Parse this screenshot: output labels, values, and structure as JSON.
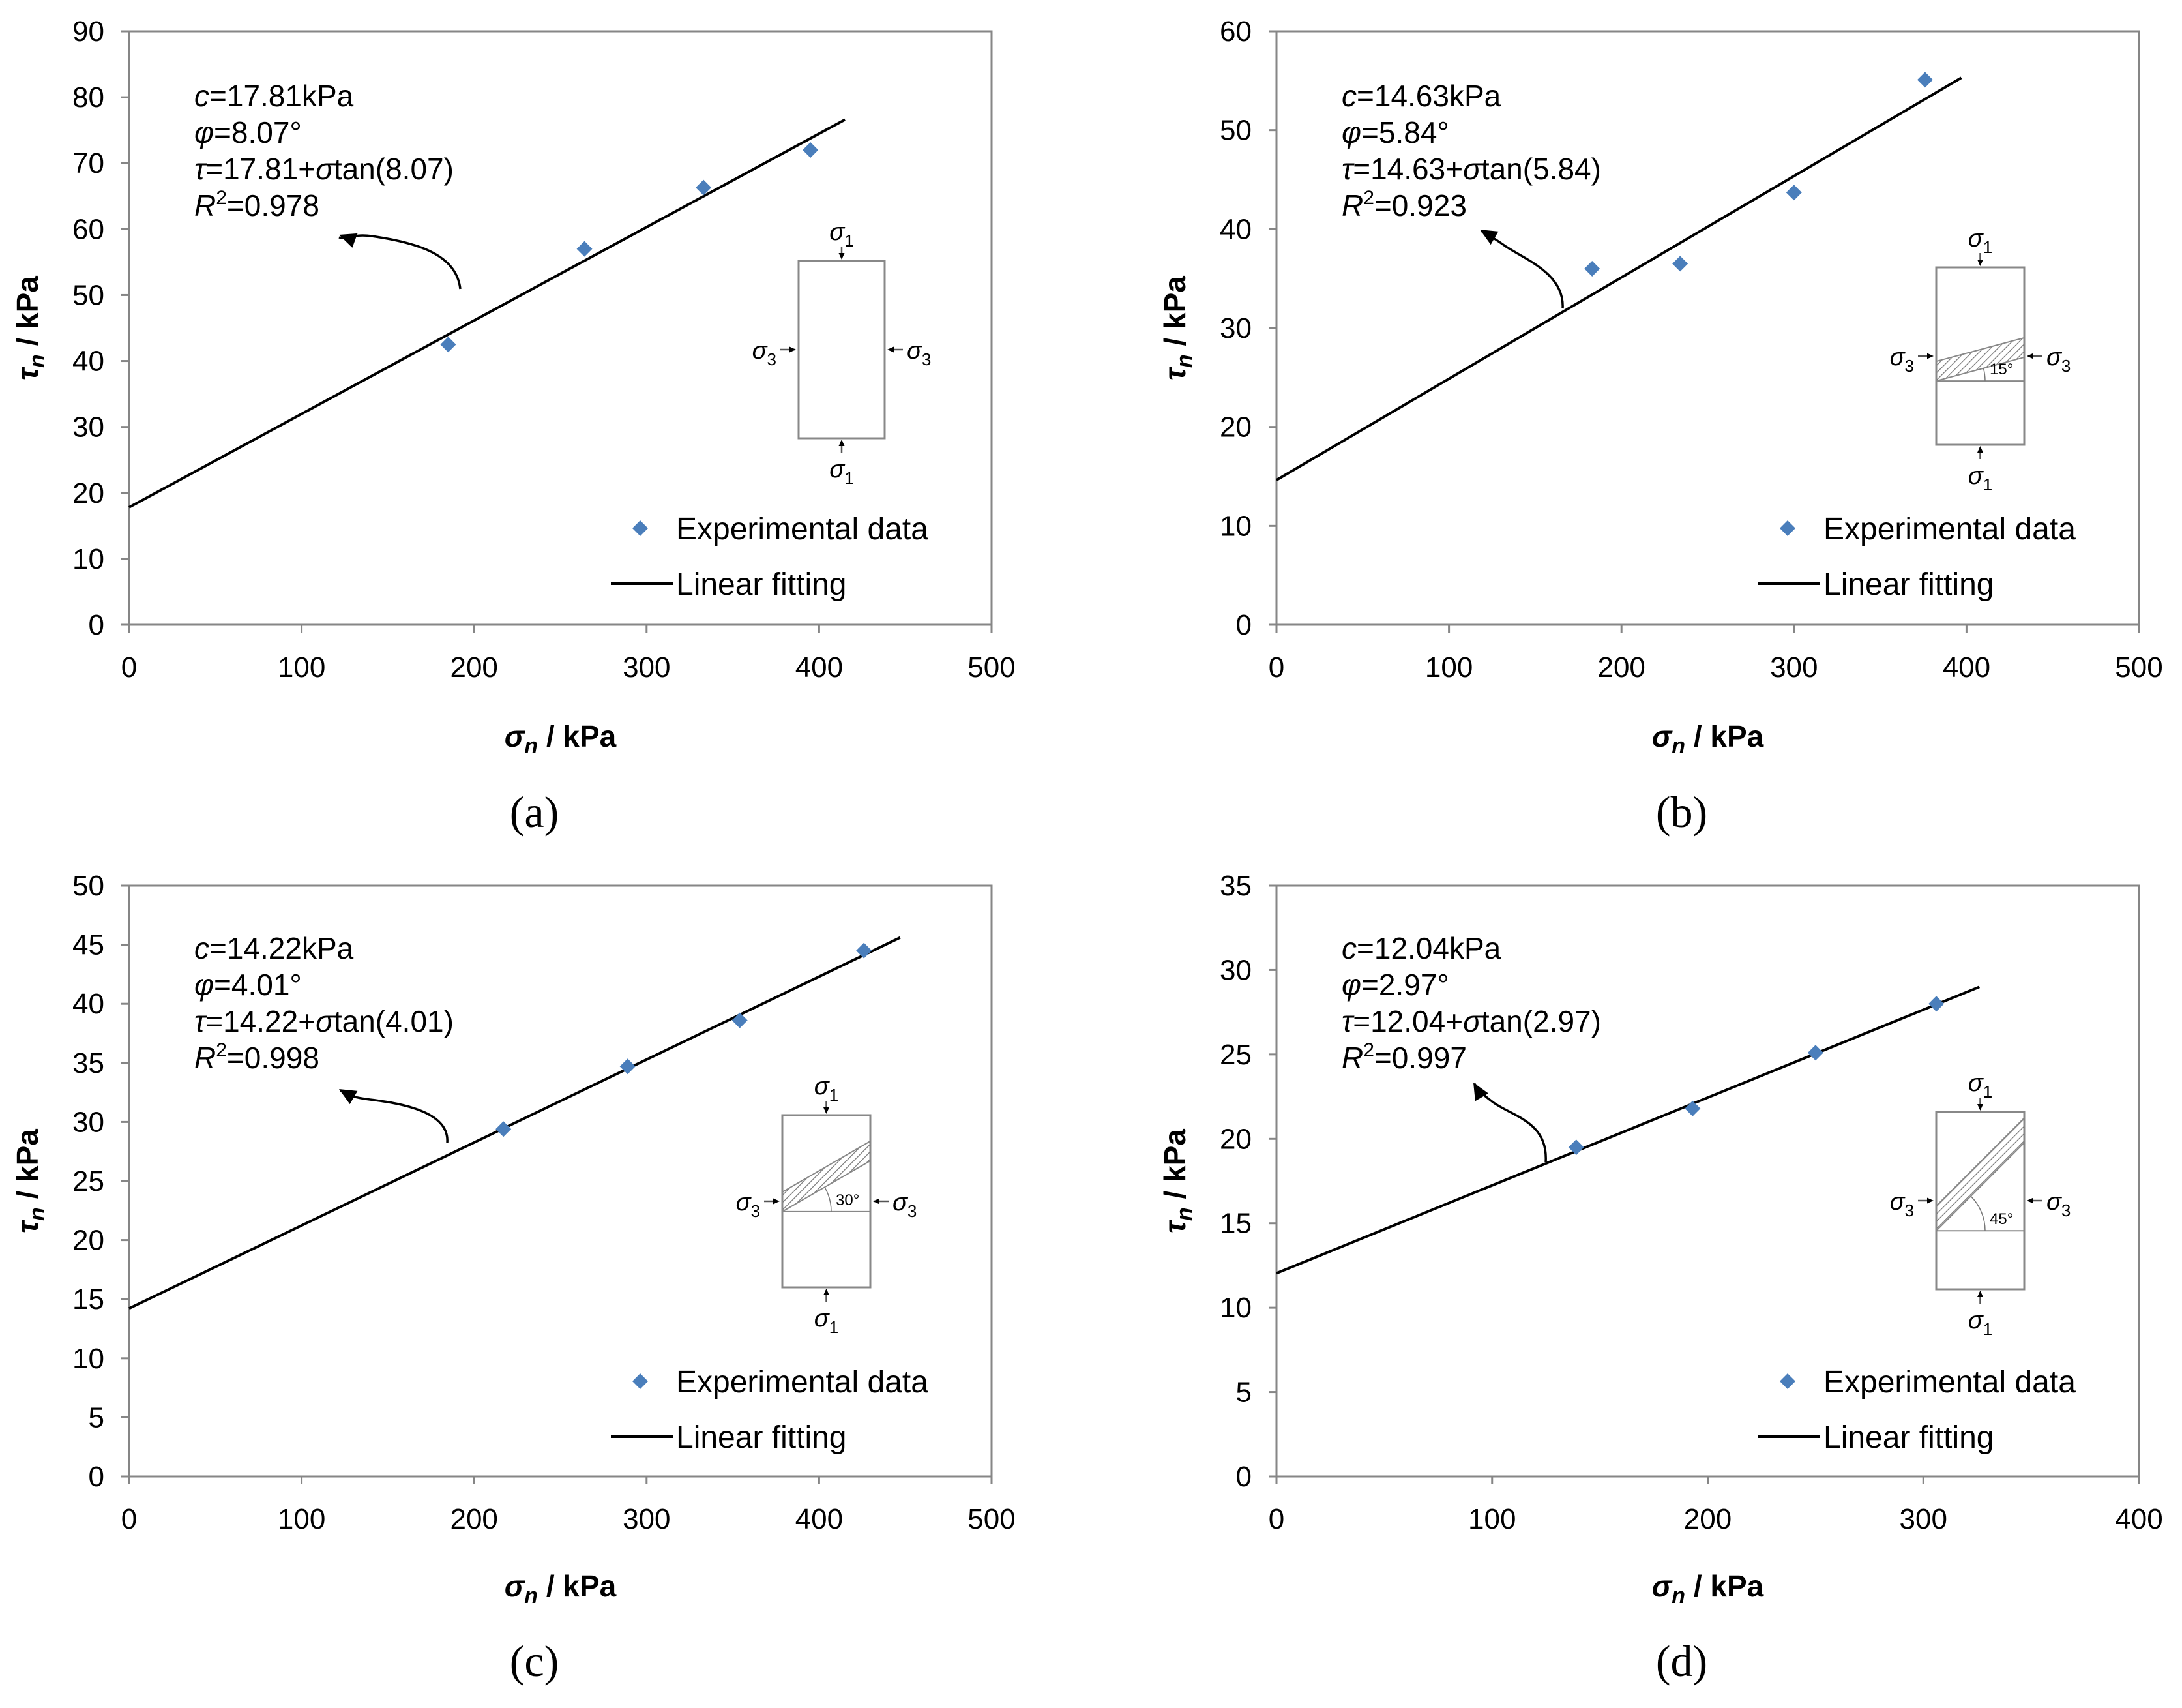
{
  "figure": {
    "panels": [
      {
        "id": "a",
        "label": "(a)",
        "annotation": {
          "c": "17.81kPa",
          "phi": "8.07°",
          "tau_rest": "=17.81+",
          "tan_part": "tan(8.07)",
          "r2": "=0.978"
        },
        "inset": {
          "angle_label": ""
        }
      },
      {
        "id": "b",
        "label": "(b)",
        "annotation": {
          "c": "14.63kPa",
          "phi": "5.84°",
          "tau_rest": "=14.63+",
          "tan_part": "tan(5.84)",
          "r2": "=0.923"
        },
        "inset": {
          "angle_label": "15°"
        }
      },
      {
        "id": "c",
        "label": "(c)",
        "annotation": {
          "c": "14.22kPa",
          "phi": "4.01°",
          "tau_rest": "=14.22+",
          "tan_part": "tan(4.01)",
          "r2": "=0.998"
        },
        "inset": {
          "angle_label": "30°"
        }
      },
      {
        "id": "d",
        "label": "(d)",
        "annotation": {
          "c": "12.04kPa",
          "phi": "2.97°",
          "tau_rest": "=12.04+",
          "tan_part": "tan(2.97)",
          "r2": "=0.997"
        },
        "inset": {
          "angle_label": "45°"
        }
      }
    ]
  },
  "chart_data": [
    {
      "type": "scatter",
      "panel": "a",
      "xlabel": "σn / kPa",
      "ylabel": "τn / kPa",
      "xlim": [
        0,
        500
      ],
      "ylim": [
        0,
        90
      ],
      "xticks": [
        0,
        100,
        200,
        300,
        400,
        500
      ],
      "yticks": [
        0,
        10,
        20,
        30,
        40,
        50,
        60,
        70,
        80,
        90
      ],
      "series": [
        {
          "name": "Experimental data",
          "kind": "scatter",
          "color": "#4a7ebb",
          "x": [
            185,
            264,
            333,
            395
          ],
          "y": [
            42.5,
            57,
            66.3,
            72
          ]
        },
        {
          "name": "Linear fitting",
          "kind": "line",
          "color": "#000000",
          "x": [
            0,
            415
          ],
          "y": [
            17.81,
            76.6
          ]
        }
      ],
      "legend": "bottom-right"
    },
    {
      "type": "scatter",
      "panel": "b",
      "xlabel": "σn / kPa",
      "ylabel": "τn / kPa",
      "xlim": [
        0,
        500
      ],
      "ylim": [
        0,
        60
      ],
      "xticks": [
        0,
        100,
        200,
        300,
        400,
        500
      ],
      "yticks": [
        0,
        10,
        20,
        30,
        40,
        50,
        60
      ],
      "series": [
        {
          "name": "Experimental data",
          "kind": "scatter",
          "color": "#4a7ebb",
          "x": [
            183,
            234,
            300,
            376
          ],
          "y": [
            36,
            36.5,
            43.7,
            55.1
          ]
        },
        {
          "name": "Linear fitting",
          "kind": "line",
          "color": "#000000",
          "x": [
            0,
            397
          ],
          "y": [
            14.63,
            55.3
          ]
        }
      ],
      "legend": "bottom-right"
    },
    {
      "type": "scatter",
      "panel": "c",
      "xlabel": "σn / kPa",
      "ylabel": "τn / kPa",
      "xlim": [
        0,
        500
      ],
      "ylim": [
        0,
        50
      ],
      "xticks": [
        0,
        100,
        200,
        300,
        400,
        500
      ],
      "yticks": [
        0,
        5,
        10,
        15,
        20,
        25,
        30,
        35,
        40,
        45,
        50
      ],
      "series": [
        {
          "name": "Experimental data",
          "kind": "scatter",
          "color": "#4a7ebb",
          "x": [
            217,
            289,
            354,
            426
          ],
          "y": [
            29.4,
            34.7,
            38.6,
            44.5
          ]
        },
        {
          "name": "Linear fitting",
          "kind": "line",
          "color": "#000000",
          "x": [
            0,
            447
          ],
          "y": [
            14.22,
            45.6
          ]
        }
      ],
      "legend": "bottom-right"
    },
    {
      "type": "scatter",
      "panel": "d",
      "xlabel": "σn / kPa",
      "ylabel": "τn / kPa",
      "xlim": [
        0,
        400
      ],
      "ylim": [
        0,
        35
      ],
      "xticks": [
        0,
        100,
        200,
        300,
        400
      ],
      "yticks": [
        0,
        5,
        10,
        15,
        20,
        25,
        30,
        35
      ],
      "series": [
        {
          "name": "Experimental data",
          "kind": "scatter",
          "color": "#4a7ebb",
          "x": [
            139,
            193,
            250,
            306
          ],
          "y": [
            19.5,
            21.8,
            25.1,
            28
          ]
        },
        {
          "name": "Linear fitting",
          "kind": "line",
          "color": "#000000",
          "x": [
            0,
            326
          ],
          "y": [
            12.04,
            29
          ]
        }
      ],
      "legend": "bottom-right"
    }
  ]
}
